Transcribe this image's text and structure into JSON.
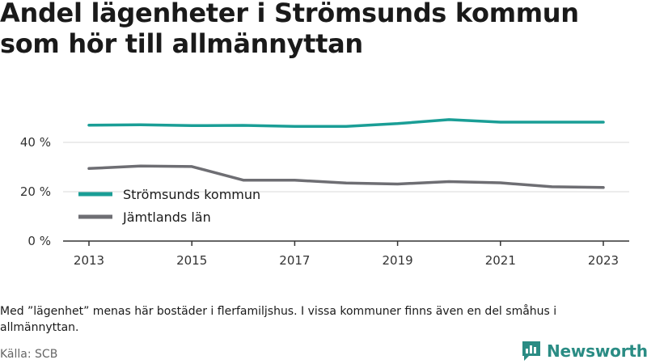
{
  "title": "Andel lägenheter i Strömsunds kommun som hör till allmännyttan",
  "note": "Med ”lägenhet” menas här bostäder i flerfamiljshus. I vissa kommuner finns även en del småhus i allmännyttan.",
  "source": "Källa: SCB",
  "brand": {
    "name": "Newsworthy",
    "color": "#2a8c84"
  },
  "chart_data": {
    "type": "line",
    "x": [
      2013,
      2014,
      2015,
      2016,
      2017,
      2018,
      2019,
      2020,
      2021,
      2022,
      2023
    ],
    "x_ticks": [
      2013,
      2015,
      2017,
      2019,
      2021,
      2023
    ],
    "x_tick_labels": [
      "2013",
      "2015",
      "2017",
      "2019",
      "2021",
      "2023"
    ],
    "y_ticks": [
      0,
      20,
      40
    ],
    "y_tick_labels": [
      "0 %",
      "20 %",
      "40 %"
    ],
    "ylim": [
      0,
      52
    ],
    "grid": true,
    "legend_position": "bottom-left",
    "series": [
      {
        "name": "Strömsunds kommun",
        "color": "#1a9e96",
        "values": [
          47.0,
          47.1,
          46.8,
          46.9,
          46.5,
          46.5,
          47.6,
          49.2,
          48.2,
          48.2,
          48.2
        ]
      },
      {
        "name": "Jämtlands län",
        "color": "#6e6e73",
        "values": [
          29.4,
          30.4,
          30.2,
          24.7,
          24.7,
          23.5,
          23.1,
          24.1,
          23.6,
          22.0,
          21.7
        ]
      }
    ]
  }
}
